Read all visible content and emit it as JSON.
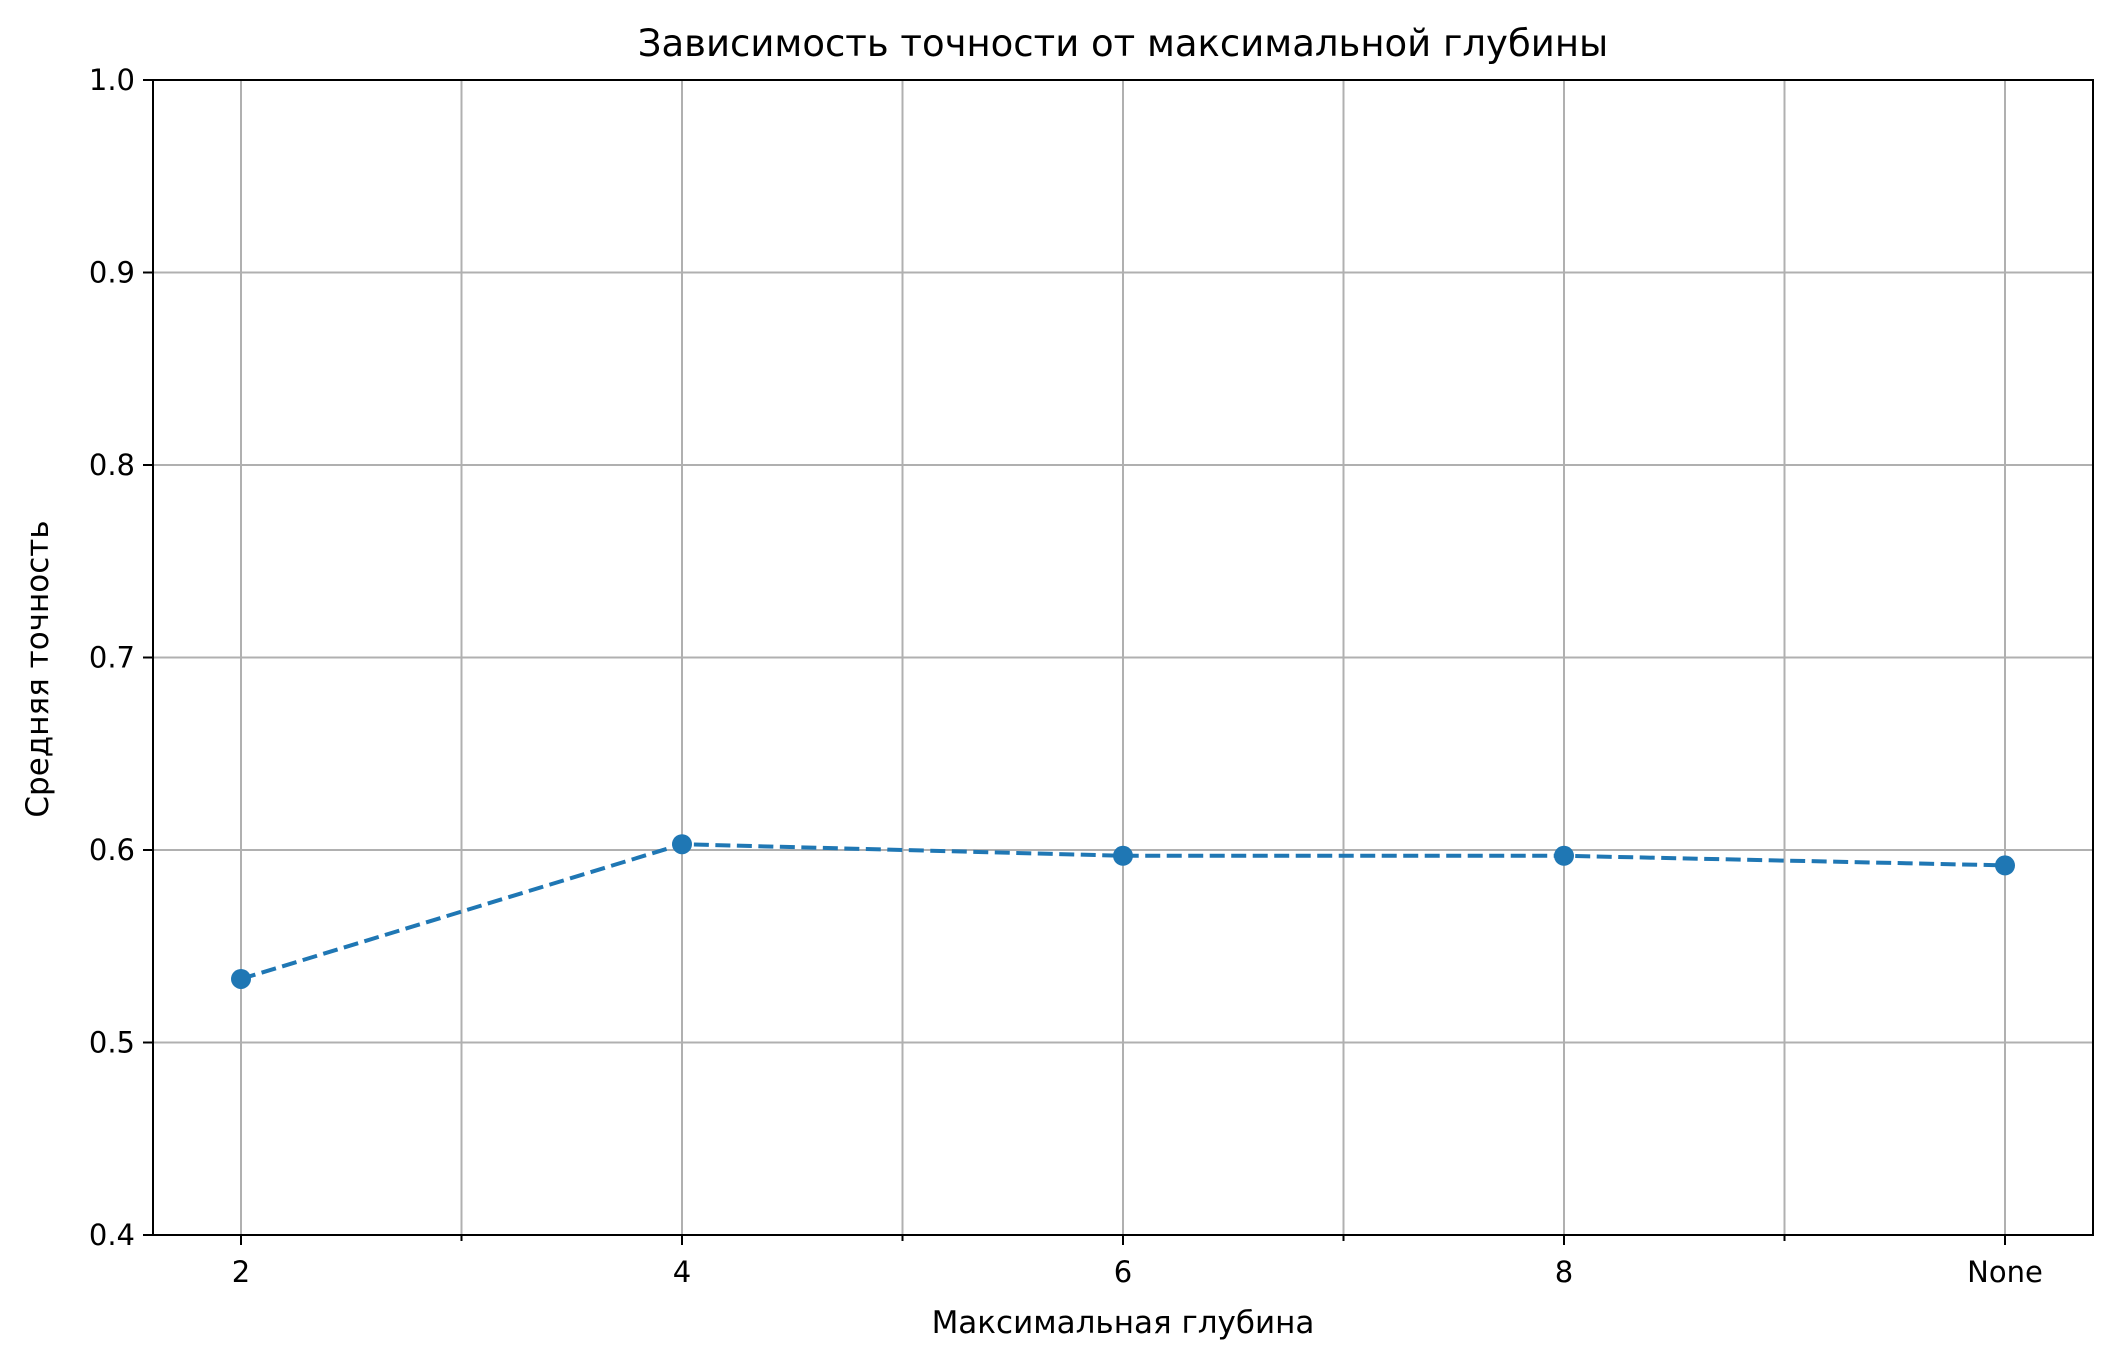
{
  "chart_data": {
    "type": "line",
    "title": "Зависимость точности от максимальной глубины",
    "xlabel": "Максимальная глубина",
    "ylabel": "Средняя точность",
    "categories": [
      "2",
      "4",
      "6",
      "8",
      "None"
    ],
    "x_tick_labels": [
      "2",
      "4",
      "6",
      "8",
      "None"
    ],
    "y_ticks": [
      0.4,
      0.5,
      0.6,
      0.7,
      0.8,
      0.9,
      1.0
    ],
    "y_tick_labels": [
      "0.4",
      "0.5",
      "0.6",
      "0.7",
      "0.8",
      "0.9",
      "1.0"
    ],
    "ylim": [
      0.4,
      1.0
    ],
    "grid": true,
    "line_style": "dashed",
    "marker": "circle",
    "series": [
      {
        "values": [
          0.533,
          0.603,
          0.597,
          0.597,
          0.592
        ],
        "color": "#1f77b4"
      }
    ]
  }
}
